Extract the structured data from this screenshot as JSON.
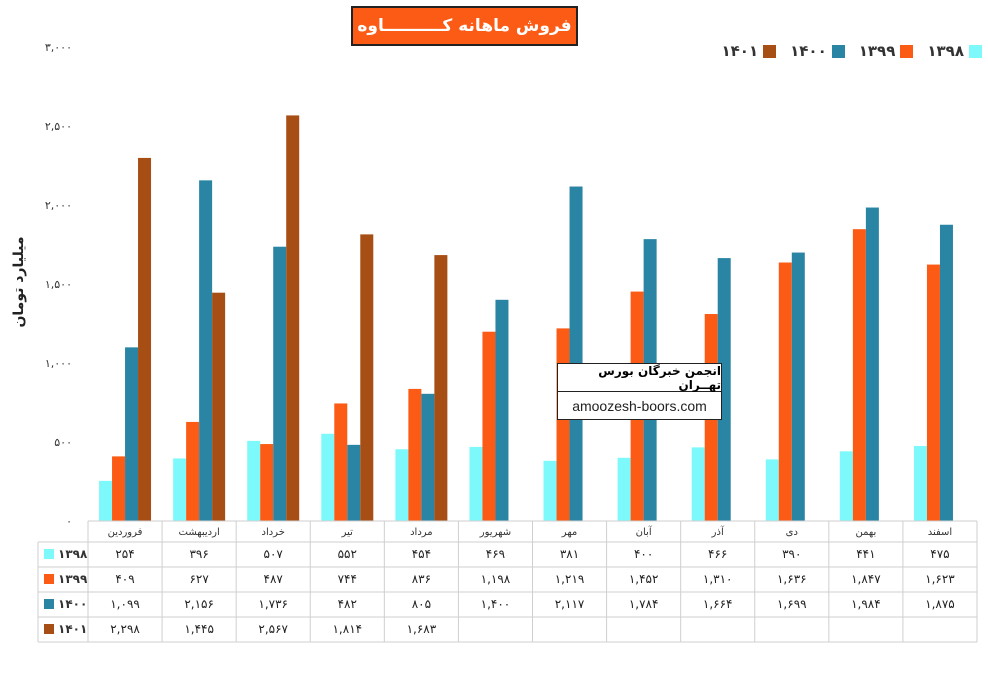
{
  "chart_data": {
    "type": "bar",
    "title": "فروش ماهانه کــــــــــاوه",
    "xlabel": "",
    "ylabel": "میلیارد تومان",
    "ylim": [
      0,
      3000
    ],
    "yticks": [
      0,
      500,
      1000,
      1500,
      2000,
      2500,
      3000
    ],
    "ytick_labels": [
      "۰",
      "۵۰۰",
      "۱,۰۰۰",
      "۱,۵۰۰",
      "۲,۰۰۰",
      "۲,۵۰۰",
      "۳,۰۰۰"
    ],
    "grid": false,
    "legend_position": "top-right",
    "categories": [
      "فروردین",
      "اردیبهشت",
      "خرداد",
      "تیر",
      "مرداد",
      "شهریور",
      "مهر",
      "آبان",
      "آذر",
      "دی",
      "بهمن",
      "اسفند"
    ],
    "series": [
      {
        "name": "۱۳۹۸",
        "color": "#7df9fb",
        "values": [
          254,
          396,
          507,
          552,
          454,
          469,
          381,
          400,
          466,
          390,
          441,
          475
        ],
        "labels": [
          "۲۵۴",
          "۳۹۶",
          "۵۰۷",
          "۵۵۲",
          "۴۵۴",
          "۴۶۹",
          "۳۸۱",
          "۴۰۰",
          "۴۶۶",
          "۳۹۰",
          "۴۴۱",
          "۴۷۵"
        ]
      },
      {
        "name": "۱۳۹۹",
        "color": "#fb5b14",
        "values": [
          409,
          627,
          487,
          744,
          836,
          1198,
          1219,
          1452,
          1310,
          1636,
          1847,
          1623
        ],
        "labels": [
          "۴۰۹",
          "۶۲۷",
          "۴۸۷",
          "۷۴۴",
          "۸۳۶",
          "۱,۱۹۸",
          "۱,۲۱۹",
          "۱,۴۵۲",
          "۱,۳۱۰",
          "۱,۶۳۶",
          "۱,۸۴۷",
          "۱,۶۲۳"
        ]
      },
      {
        "name": "۱۴۰۰",
        "color": "#2a85a5",
        "values": [
          1099,
          2156,
          1736,
          482,
          805,
          1400,
          2117,
          1784,
          1664,
          1699,
          1984,
          1875
        ],
        "labels": [
          "۱,۰۹۹",
          "۲,۱۵۶",
          "۱,۷۳۶",
          "۴۸۲",
          "۸۰۵",
          "۱,۴۰۰",
          "۲,۱۱۷",
          "۱,۷۸۴",
          "۱,۶۶۴",
          "۱,۶۹۹",
          "۱,۹۸۴",
          "۱,۸۷۵"
        ]
      },
      {
        "name": "۱۴۰۱",
        "color": "#a64e14",
        "values": [
          2298,
          1445,
          2567,
          1814,
          1683,
          null,
          null,
          null,
          null,
          null,
          null,
          null
        ],
        "labels": [
          "۲,۲۹۸",
          "۱,۴۴۵",
          "۲,۵۶۷",
          "۱,۸۱۴",
          "۱,۶۸۳",
          "",
          "",
          "",
          "",
          "",
          "",
          ""
        ]
      }
    ]
  },
  "watermark": {
    "title": "انجمن خبرگان بورس تهــران",
    "url": "amoozesh-boors.com"
  }
}
